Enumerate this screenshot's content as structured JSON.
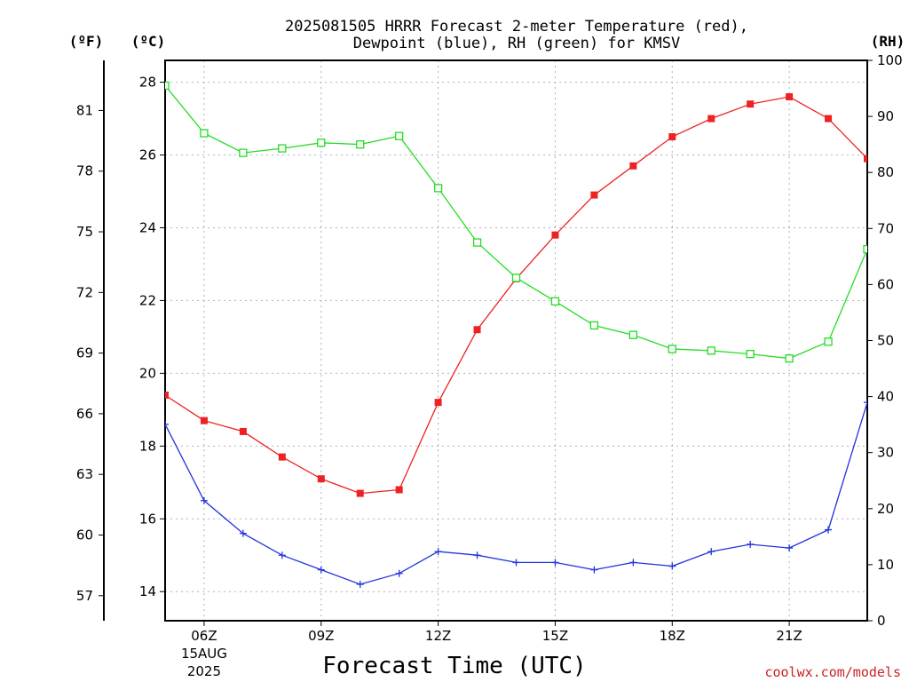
{
  "chart_data": {
    "type": "line",
    "title_line1": "2025081505 HRRR Forecast 2-meter Temperature (red),",
    "title_line2": "Dewpoint (blue), RH (green) for KMSV",
    "xlabel": "Forecast Time (UTC)",
    "credit": "coolwx.com/models",
    "units": {
      "fahrenheit": "(ºF)",
      "celsius": "(ºC)",
      "rh": "(RH)"
    },
    "x_hours": [
      5,
      6,
      7,
      8,
      9,
      10,
      11,
      12,
      13,
      14,
      15,
      16,
      17,
      18,
      19,
      20,
      21,
      22,
      23
    ],
    "xlim": [
      5,
      23
    ],
    "x_ticks": [
      {
        "hour": 6,
        "label": "06Z",
        "sub1": "15AUG",
        "sub2": "2025"
      },
      {
        "hour": 9,
        "label": "09Z"
      },
      {
        "hour": 12,
        "label": "12Z"
      },
      {
        "hour": 15,
        "label": "15Z"
      },
      {
        "hour": 18,
        "label": "18Z"
      },
      {
        "hour": 21,
        "label": "21Z"
      }
    ],
    "ylim_c": [
      13.2,
      28.6
    ],
    "y_ticks_c": [
      14,
      16,
      18,
      20,
      22,
      24,
      26,
      28
    ],
    "y_ticks_f": [
      57,
      60,
      63,
      66,
      69,
      72,
      75,
      78,
      81
    ],
    "ylim_rh": [
      0,
      100
    ],
    "y_ticks_rh": [
      0,
      10,
      20,
      30,
      40,
      50,
      60,
      70,
      80,
      90,
      100
    ],
    "series": [
      {
        "name": "Temperature",
        "axis": "celsius",
        "color": "#ee2222",
        "marker": "filled-square",
        "values": [
          19.4,
          18.7,
          18.4,
          17.7,
          17.1,
          16.7,
          16.8,
          19.2,
          21.2,
          22.6,
          23.8,
          24.9,
          25.7,
          26.5,
          27.0,
          27.4,
          27.6,
          27.0,
          25.9
        ]
      },
      {
        "name": "Dewpoint",
        "axis": "celsius",
        "color": "#2233dd",
        "marker": "plus",
        "values": [
          18.6,
          16.5,
          15.6,
          15.0,
          14.6,
          14.2,
          14.5,
          15.1,
          15.0,
          14.8,
          14.8,
          14.6,
          14.8,
          14.7,
          15.1,
          15.3,
          15.2,
          15.7,
          19.2
        ]
      },
      {
        "name": "RH",
        "axis": "rh",
        "color": "#22dd22",
        "marker": "open-square",
        "values": [
          95.5,
          87,
          83.5,
          84.3,
          85.3,
          85,
          86.5,
          77.2,
          67.5,
          61.2,
          57,
          52.7,
          51,
          48.5,
          48.2,
          47.6,
          46.8,
          49.8,
          66.3
        ]
      }
    ],
    "grid": true
  }
}
